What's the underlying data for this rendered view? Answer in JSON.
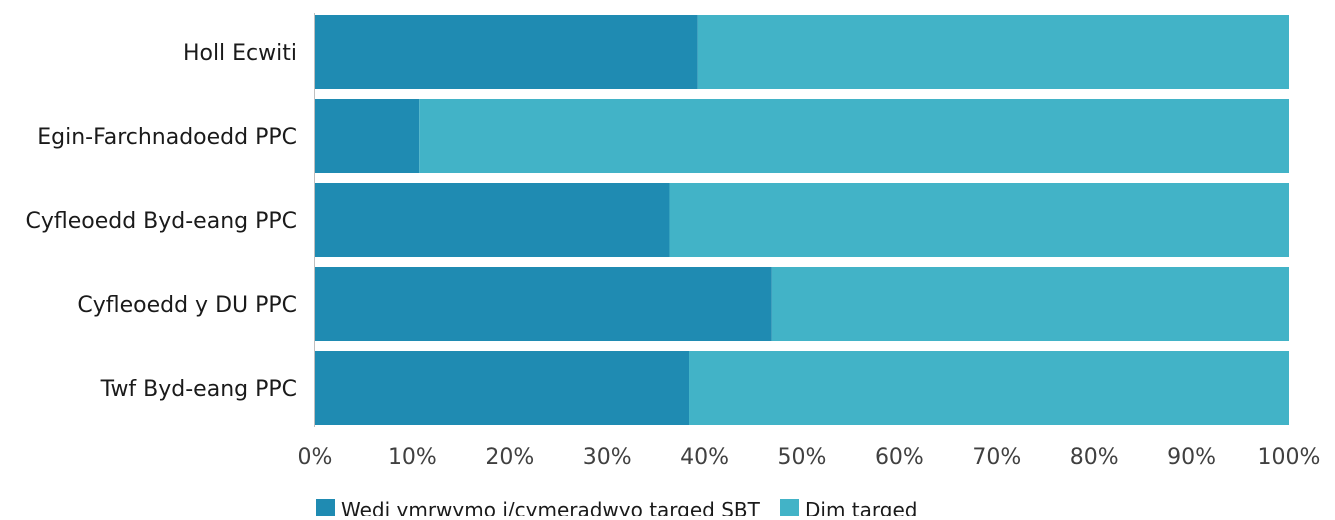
{
  "chart_data": {
    "type": "bar",
    "orientation": "horizontal",
    "stacked": true,
    "categories": [
      "Holl Ecwiti",
      "Egin-Farchnadoedd PPC",
      "Cyfleoedd Byd-eang PPC",
      "Cyfleoedd y DU PPC",
      "Twf Byd-eang PPC"
    ],
    "series": [
      {
        "name": "Wedi ymrwymo i/cymeradwyo targed SBT",
        "color": "#1f8bb2",
        "values": [
          39.3,
          10.7,
          36.4,
          46.9,
          38.4
        ]
      },
      {
        "name": "Dim targed",
        "color": "#42b3c7",
        "values": [
          60.7,
          89.3,
          63.6,
          53.1,
          61.6
        ]
      }
    ],
    "x_ticks": [
      "0%",
      "10%",
      "20%",
      "30%",
      "40%",
      "50%",
      "60%",
      "70%",
      "80%",
      "90%",
      "100%"
    ],
    "xlim": [
      0,
      100
    ],
    "title": "",
    "xlabel": "",
    "ylabel": "",
    "grid": false,
    "legend_position": "bottom-left"
  }
}
